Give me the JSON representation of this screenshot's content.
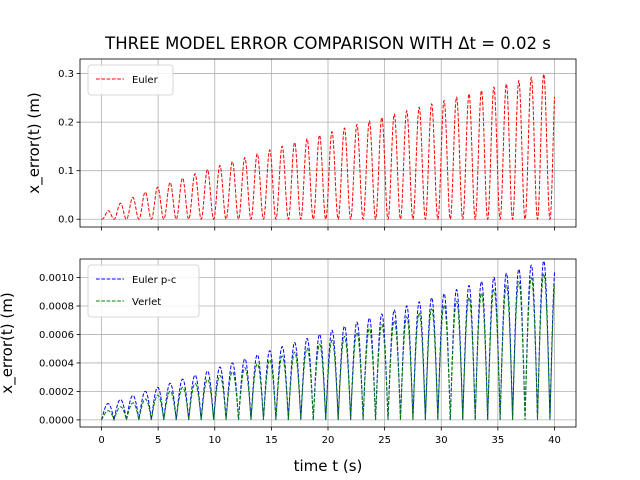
{
  "chart_data": {
    "title": "THREE MODEL ERROR COMPARISON WITH Δt = 0.02 s",
    "xlabel": "time t (s)",
    "panels": [
      {
        "type": "line",
        "ylabel": "x_error(t) (m)",
        "xlim": [
          -1.9,
          41.9
        ],
        "ylim": [
          -0.016,
          0.33
        ],
        "xticks": [
          0,
          5,
          10,
          15,
          20,
          25,
          30,
          35,
          40
        ],
        "show_xtick_labels": false,
        "yticks": [
          0.0,
          0.1,
          0.2,
          0.3
        ],
        "ytick_labels": [
          "0.0",
          "0.1",
          "0.2",
          "0.3"
        ],
        "grid": true,
        "legend_position": "top-left",
        "series": [
          {
            "name": "Euler",
            "color": "#ff0000",
            "dash": "dashed",
            "envelope": {
              "period": 1.1,
              "a": 0.0045,
              "b": 0.0197,
              "c": 0.0,
              "shape": 2
            }
          }
        ]
      },
      {
        "type": "line",
        "ylabel": "x_error(t) (m)",
        "xlim": [
          -1.9,
          41.9
        ],
        "ylim": [
          -5e-05,
          0.00113
        ],
        "xticks": [
          0,
          5,
          10,
          15,
          20,
          25,
          30,
          35,
          40
        ],
        "xtick_labels": [
          "0",
          "5",
          "10",
          "15",
          "20",
          "25",
          "30",
          "35",
          "40"
        ],
        "show_xtick_labels": true,
        "yticks": [
          0.0,
          0.0002,
          0.0004,
          0.0006,
          0.0008,
          0.001
        ],
        "ytick_labels": [
          "0.0000",
          "0.0002",
          "0.0004",
          "0.0006",
          "0.0008",
          "0.0010"
        ],
        "grid": true,
        "legend_position": "top-left",
        "series": [
          {
            "name": "Euler p-c",
            "color": "#0000ff",
            "dash": "dashed",
            "envelope": {
              "period": 1.1,
              "a": 2.6e-05,
              "b": 0.0,
              "c": 0.0001,
              "shape": 1
            }
          },
          {
            "name": "Verlet",
            "color": "#008000",
            "dash": "dashed",
            "envelope": {
              "period": 1.1,
              "a": 2.5e-05,
              "b": 0.0,
              "c": 5e-05,
              "shape": 1
            }
          }
        ]
      }
    ]
  }
}
